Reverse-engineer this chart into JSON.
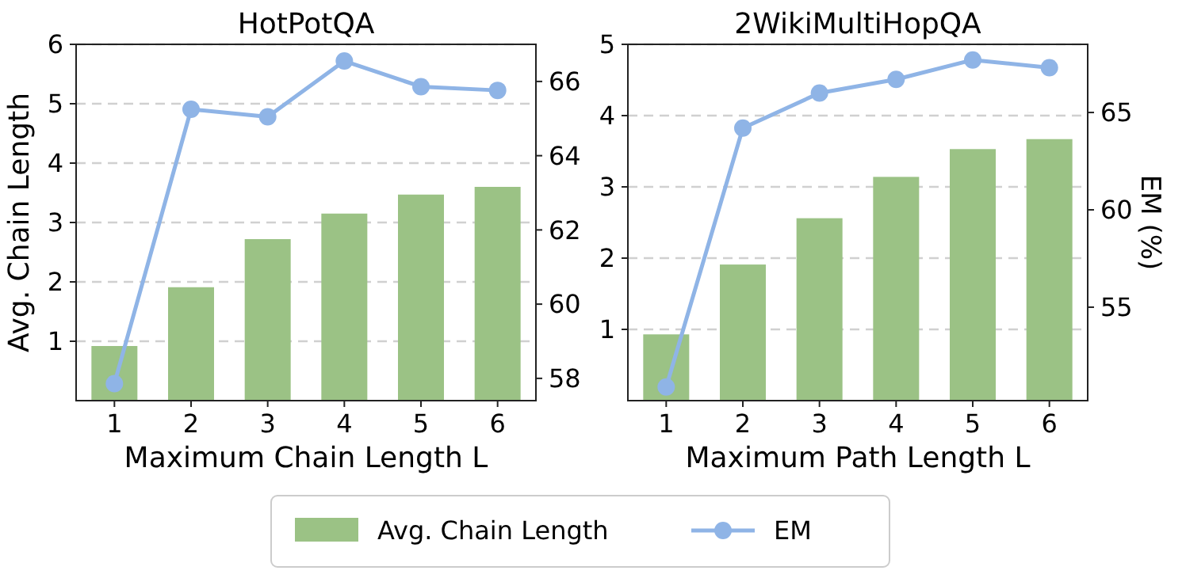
{
  "chart_data": [
    {
      "type": "bar",
      "title": "HotPotQA",
      "xlabel": "Maximum Chain Length L",
      "ylabel": "Avg. Chain Length",
      "categories": [
        "1",
        "2",
        "3",
        "4",
        "5",
        "6"
      ],
      "series": [
        {
          "name": "Avg. Chain Length",
          "color": "#9bc285",
          "values": [
            0.92,
            1.91,
            2.72,
            3.15,
            3.47,
            3.6
          ]
        },
        {
          "name": "EM",
          "type": "line",
          "axis": "y2",
          "color": "#8fb4e6",
          "values": [
            57.86,
            65.25,
            65.05,
            66.55,
            65.86,
            65.76
          ]
        }
      ],
      "ylim": [
        0,
        6
      ],
      "yticks": [
        1,
        2,
        3,
        4,
        5,
        6
      ],
      "y2lim": [
        57.4,
        67.0
      ],
      "y2ticks": [
        58,
        60,
        62,
        64,
        66
      ],
      "grid": "y",
      "marker": "circle",
      "legend": "bottom"
    },
    {
      "type": "bar",
      "title": "2WikiMultiHopQA",
      "xlabel": "Maximum Path Length L",
      "y2label": "EM (%)",
      "categories": [
        "1",
        "2",
        "3",
        "4",
        "5",
        "6"
      ],
      "series": [
        {
          "color": "#9bc285",
          "values": [
            0.93,
            1.91,
            2.56,
            3.14,
            3.53,
            3.67
          ]
        },
        {
          "type": "line",
          "axis": "y2",
          "color": "#8fb4e6",
          "values": [
            50.9,
            64.2,
            66.0,
            66.7,
            67.7,
            67.3
          ]
        }
      ],
      "ylim": [
        0,
        5
      ],
      "yticks": [
        1,
        2,
        3,
        4,
        5
      ],
      "y2lim": [
        50.2,
        68.5
      ],
      "y2ticks": [
        55,
        60,
        65
      ],
      "grid": "y",
      "marker": "circle"
    }
  ]
}
